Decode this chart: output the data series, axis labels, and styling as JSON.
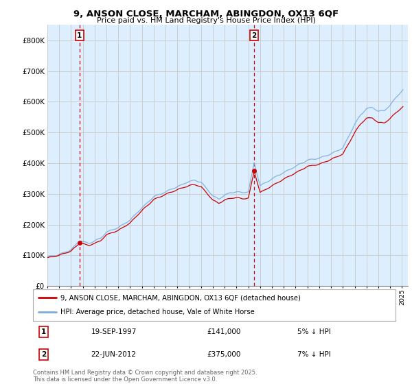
{
  "title_line1": "9, ANSON CLOSE, MARCHAM, ABINGDON, OX13 6QF",
  "title_line2": "Price paid vs. HM Land Registry's House Price Index (HPI)",
  "ylim": [
    0,
    850000
  ],
  "yticks": [
    0,
    100000,
    200000,
    300000,
    400000,
    500000,
    600000,
    700000,
    800000
  ],
  "ytick_labels": [
    "£0",
    "£100K",
    "£200K",
    "£300K",
    "£400K",
    "£500K",
    "£600K",
    "£700K",
    "£800K"
  ],
  "x_start_year": 1995,
  "x_end_year": 2025,
  "sale1_date": "19-SEP-1997",
  "sale1_price": 141000,
  "sale1_label": "1",
  "sale1_pct": "5% ↓ HPI",
  "sale2_date": "22-JUN-2012",
  "sale2_label": "2",
  "sale2_price": 375000,
  "sale2_pct": "7% ↓ HPI",
  "legend_line1": "9, ANSON CLOSE, MARCHAM, ABINGDON, OX13 6QF (detached house)",
  "legend_line2": "HPI: Average price, detached house, Vale of White Horse",
  "footer": "Contains HM Land Registry data © Crown copyright and database right 2025.\nThis data is licensed under the Open Government Licence v3.0.",
  "line_color_red": "#cc0000",
  "line_color_blue": "#7aaddb",
  "vline_color": "#cc0000",
  "grid_color": "#cccccc",
  "bg_plot": "#ddeeff",
  "background_color": "#ffffff"
}
